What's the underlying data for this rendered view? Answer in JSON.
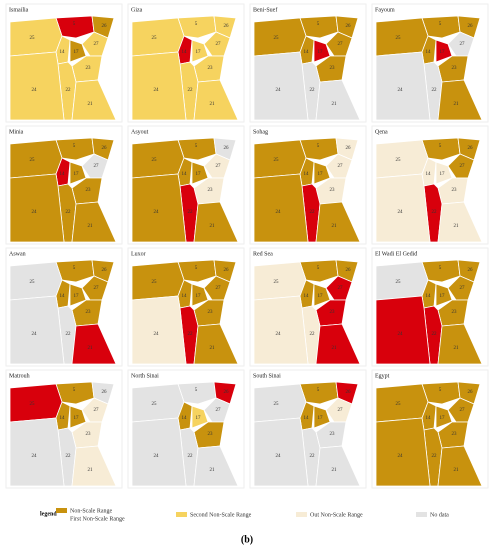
{
  "palette": [
    "#c8920e",
    "#f6d35f",
    "#f7ecd6",
    "#e3e3e3",
    "#d8000c"
  ],
  "regions": [
    "5",
    "26",
    "27",
    "25",
    "14",
    "17",
    "23",
    "22",
    "24",
    "21"
  ],
  "panels": [
    {
      "title": "Ismailia",
      "fills": [
        4,
        0,
        1,
        1,
        1,
        0,
        1,
        1,
        1,
        1
      ]
    },
    {
      "title": "Giza",
      "fills": [
        1,
        1,
        1,
        1,
        4,
        1,
        1,
        1,
        1,
        1
      ]
    },
    {
      "title": "Beni-Suef",
      "fills": [
        0,
        0,
        0,
        0,
        0,
        4,
        0,
        3,
        3,
        3
      ]
    },
    {
      "title": "Fayoum",
      "fills": [
        0,
        0,
        3,
        0,
        0,
        4,
        0,
        3,
        3,
        0
      ]
    },
    {
      "title": "Minia",
      "fills": [
        0,
        0,
        3,
        0,
        4,
        0,
        0,
        0,
        0,
        0
      ]
    },
    {
      "title": "Asyout",
      "fills": [
        0,
        3,
        2,
        0,
        0,
        0,
        2,
        4,
        0,
        0
      ]
    },
    {
      "title": "Sohag",
      "fills": [
        0,
        2,
        2,
        0,
        0,
        0,
        2,
        4,
        0,
        0
      ]
    },
    {
      "title": "Qena",
      "fills": [
        0,
        0,
        0,
        2,
        2,
        2,
        2,
        4,
        2,
        2
      ]
    },
    {
      "title": "Aswan",
      "fills": [
        0,
        0,
        0,
        3,
        0,
        0,
        0,
        3,
        3,
        4
      ]
    },
    {
      "title": "Luxor",
      "fills": [
        0,
        0,
        0,
        0,
        0,
        0,
        0,
        4,
        2,
        0
      ]
    },
    {
      "title": "Red Sea",
      "fills": [
        0,
        0,
        4,
        2,
        0,
        0,
        4,
        2,
        2,
        4
      ]
    },
    {
      "title": "El Wadi El Gedid",
      "fills": [
        0,
        0,
        0,
        3,
        0,
        0,
        0,
        4,
        4,
        0
      ]
    },
    {
      "title": "Matrouh",
      "fills": [
        0,
        3,
        2,
        4,
        0,
        0,
        2,
        3,
        3,
        2
      ]
    },
    {
      "title": "North Sinai",
      "fills": [
        3,
        4,
        3,
        3,
        0,
        1,
        0,
        3,
        3,
        3
      ]
    },
    {
      "title": "South Sinai",
      "fills": [
        0,
        4,
        2,
        3,
        0,
        0,
        3,
        3,
        3,
        3
      ]
    },
    {
      "title": "Egypt",
      "fills": [
        0,
        0,
        0,
        0,
        0,
        0,
        0,
        0,
        0,
        0
      ]
    }
  ],
  "legend": {
    "title": "legend",
    "items": [
      {
        "label": "Non-Scale Range",
        "color_index": 0
      },
      {
        "label": "First Non-Scale Range",
        "color_index": 0
      },
      {
        "label": "Second Non-Scale Range",
        "color_index": 1
      },
      {
        "label": "Out Non-Scale Range",
        "color_index": 2
      },
      {
        "label": "No data",
        "color_index": 3
      }
    ]
  },
  "caption": "(b)"
}
